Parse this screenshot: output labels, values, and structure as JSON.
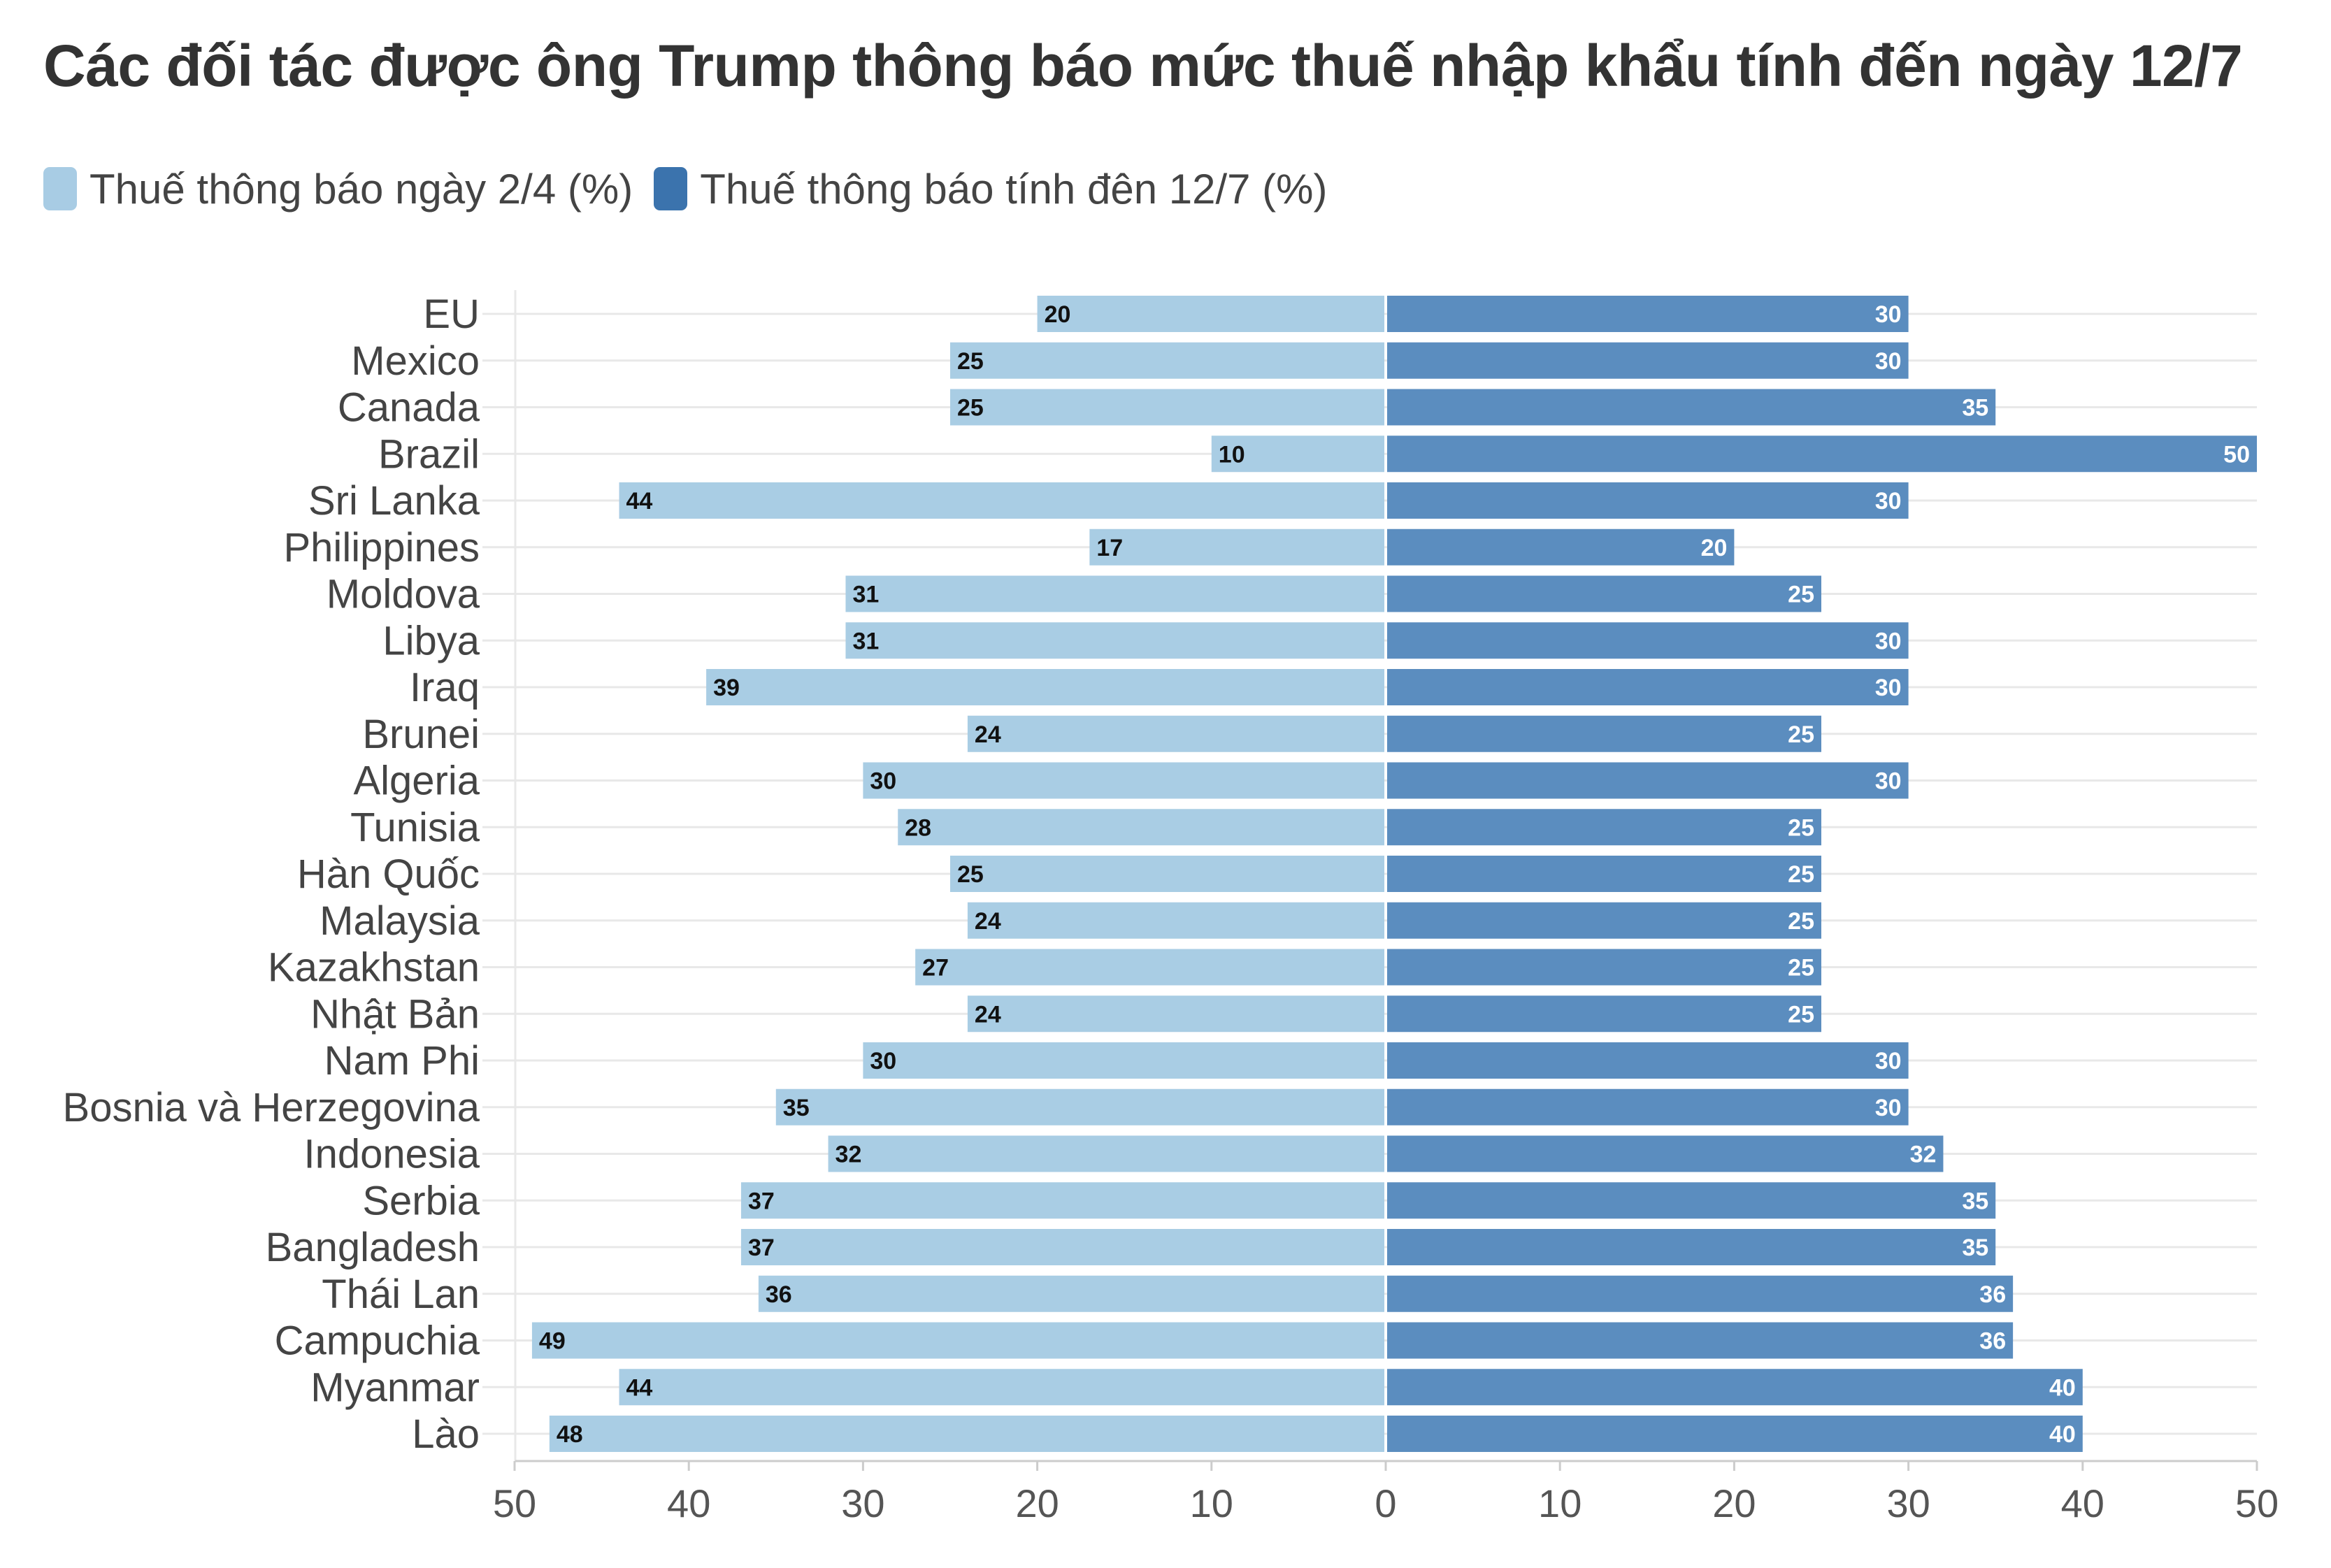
{
  "title": "Các đối tác được ông Trump thông báo mức thuế nhập khẩu tính đến ngày 12/7",
  "legend": [
    {
      "label": "Thuế thông báo ngày 2/4 (%)",
      "color": "#a8cce4"
    },
    {
      "label": "Thuế thông báo tính đên 12/7 (%)",
      "color": "#3b73ad"
    }
  ],
  "colors": {
    "old": "#a9cde4",
    "new": "#5b8dbf",
    "grid": "#e8e8e8",
    "axis": "#cccccc"
  },
  "chart_data": {
    "type": "bar",
    "orientation": "horizontal-diverging",
    "categories": [
      "EU",
      "Mexico",
      "Canada",
      "Brazil",
      "Sri Lanka",
      "Philippines",
      "Moldova",
      "Libya",
      "Iraq",
      "Brunei",
      "Algeria",
      "Tunisia",
      "Hàn Quốc",
      "Malaysia",
      "Kazakhstan",
      "Nhật Bản",
      "Nam Phi",
      "Bosnia và Herzegovina",
      "Indonesia",
      "Serbia",
      "Bangladesh",
      "Thái Lan",
      "Campuchia",
      "Myanmar",
      "Lào"
    ],
    "series": [
      {
        "name": "Thuế thông báo ngày 2/4 (%)",
        "side": "left",
        "values": [
          20,
          25,
          25,
          10,
          44,
          17,
          31,
          31,
          39,
          24,
          30,
          28,
          25,
          24,
          27,
          24,
          30,
          35,
          32,
          37,
          37,
          36,
          49,
          44,
          48
        ]
      },
      {
        "name": "Thuế thông báo tính đên 12/7 (%)",
        "side": "right",
        "values": [
          30,
          30,
          35,
          50,
          30,
          20,
          25,
          30,
          30,
          25,
          30,
          25,
          25,
          25,
          25,
          25,
          30,
          30,
          32,
          35,
          35,
          36,
          36,
          40,
          40
        ]
      }
    ],
    "xticks": [
      "50",
      "40",
      "30",
      "20",
      "10",
      "0",
      "10",
      "20",
      "30",
      "40",
      "50"
    ],
    "xlim": [
      0,
      50
    ]
  }
}
